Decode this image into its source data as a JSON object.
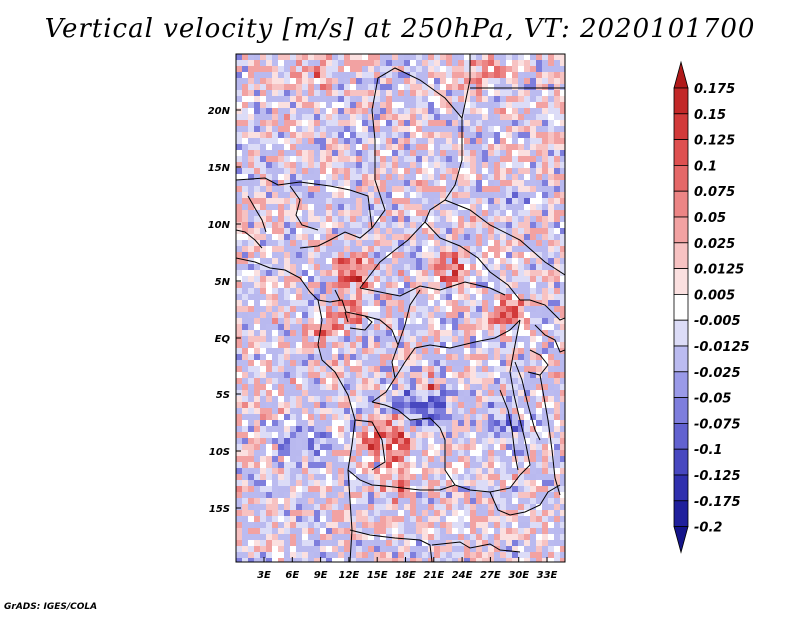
{
  "title": "Vertical velocity [m/s] at 250hPa, VT: 2020101700",
  "credit": "GrADS: IGES/COLA",
  "map": {
    "variable": "Vertical velocity",
    "units": "m/s",
    "level": "250hPa",
    "valid_time": "2020101700",
    "lat_ticks": [
      "20N",
      "15N",
      "10N",
      "5N",
      "EQ",
      "5S",
      "10S",
      "15S"
    ],
    "lon_ticks": [
      "3E",
      "6E",
      "9E",
      "12E",
      "15E",
      "18E",
      "21E",
      "24E",
      "27E",
      "30E",
      "33E"
    ]
  },
  "colorbar": {
    "labels": [
      "0.175",
      "0.15",
      "0.125",
      "0.1",
      "0.075",
      "0.05",
      "0.025",
      "0.0125",
      "0.005",
      "-0.005",
      "-0.0125",
      "-0.025",
      "-0.05",
      "-0.075",
      "-0.1",
      "-0.125",
      "-0.175",
      "-0.2"
    ],
    "colors": [
      "#b01a1a",
      "#c22828",
      "#d23a3a",
      "#de5050",
      "#e56868",
      "#ec8585",
      "#f2a2a2",
      "#f7c2c2",
      "#fbe0e0",
      "#ffffff",
      "#dcdcf7",
      "#bbbbf0",
      "#9a9ae8",
      "#7e7edd",
      "#6262d0",
      "#4848c0",
      "#3030ae",
      "#20209c",
      "#14148a"
    ]
  }
}
